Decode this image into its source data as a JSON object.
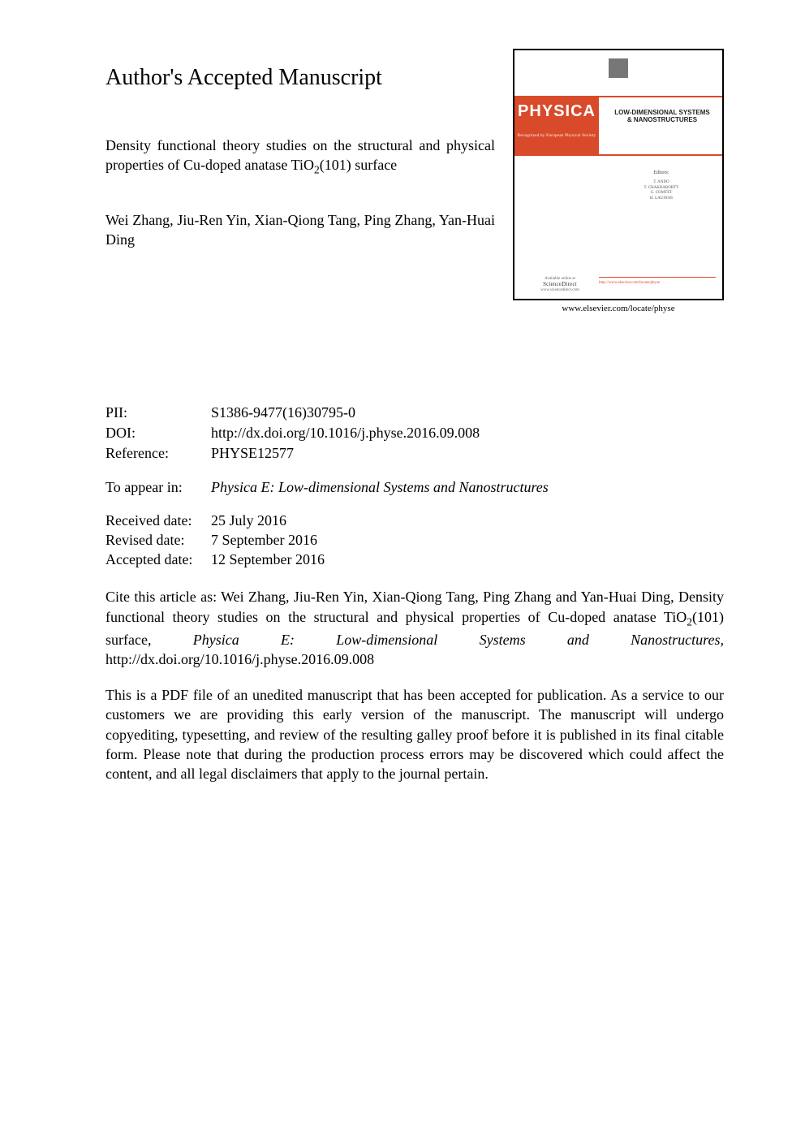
{
  "heading": "Author's Accepted Manuscript",
  "title_pre": "Density functional theory studies on the structural and physical properties of Cu-doped anatase TiO",
  "title_sub": "2",
  "title_post": "(101) surface",
  "authors": "Wei Zhang, Jiu-Ren Yin, Xian-Qiong Tang, Ping Zhang, Yan-Huai Ding",
  "cover": {
    "physica": "PHYSICA",
    "physica_sub": "Recognized by European Physical Society",
    "band_right_line1": "LOW-DIMENSIONAL SYSTEMS",
    "band_right_line2": "& NANOSTRUCTURES",
    "editors_label": "Editors:",
    "editors": "T. ANDO\nT. CHAKRABORTY\nG. COMTET\nH. LAUNOIS",
    "sd_avail": "Available online at",
    "sd_name": "ScienceDirect",
    "sd_url": "www.sciencedirect.com",
    "bottom_right": "http://www.elsevier.com/locate/physe",
    "caption": "www.elsevier.com/locate/physe"
  },
  "meta": {
    "pii_label": "PII:",
    "pii": "S1386-9477(16)30795-0",
    "doi_label": "DOI:",
    "doi": "http://dx.doi.org/10.1016/j.physe.2016.09.008",
    "ref_label": "Reference:",
    "ref": "PHYSE12577"
  },
  "appear": {
    "label": "To appear in:",
    "value": "Physica E: Low-dimensional Systems and Nanostructures"
  },
  "dates": {
    "received_label": "Received date:",
    "received": "25 July 2016",
    "revised_label": "Revised date:",
    "revised": "7 September 2016",
    "accepted_label": "Accepted date:",
    "accepted": "12 September 2016"
  },
  "cite": {
    "pre": "Cite this article as: Wei Zhang, Jiu-Ren Yin, Xian-Qiong Tang, Ping Zhang and Yan-Huai Ding, Density functional theory studies on the structural and physical properties of Cu-doped anatase TiO",
    "sub": "2",
    "mid": "(101) surface, ",
    "ital": "Physica E: Low-dimensional Systems and Nanostructures,",
    "post": " http://dx.doi.org/10.1016/j.physe.2016.09.008"
  },
  "notice": "This is a PDF file of an unedited manuscript that has been accepted for publication. As a service to our customers we are providing this early version of the manuscript. The manuscript will undergo copyediting, typesetting, and review of the resulting galley proof before it is published in its final citable form. Please note that during the production process errors may be discovered which could affect the content, and all legal disclaimers that apply to the journal pertain.",
  "colors": {
    "text": "#000000",
    "background": "#ffffff",
    "accent": "#d94a2b"
  },
  "typography": {
    "body_fontsize_pt": 13,
    "heading_fontsize_pt": 21,
    "font_family": "Times New Roman"
  }
}
